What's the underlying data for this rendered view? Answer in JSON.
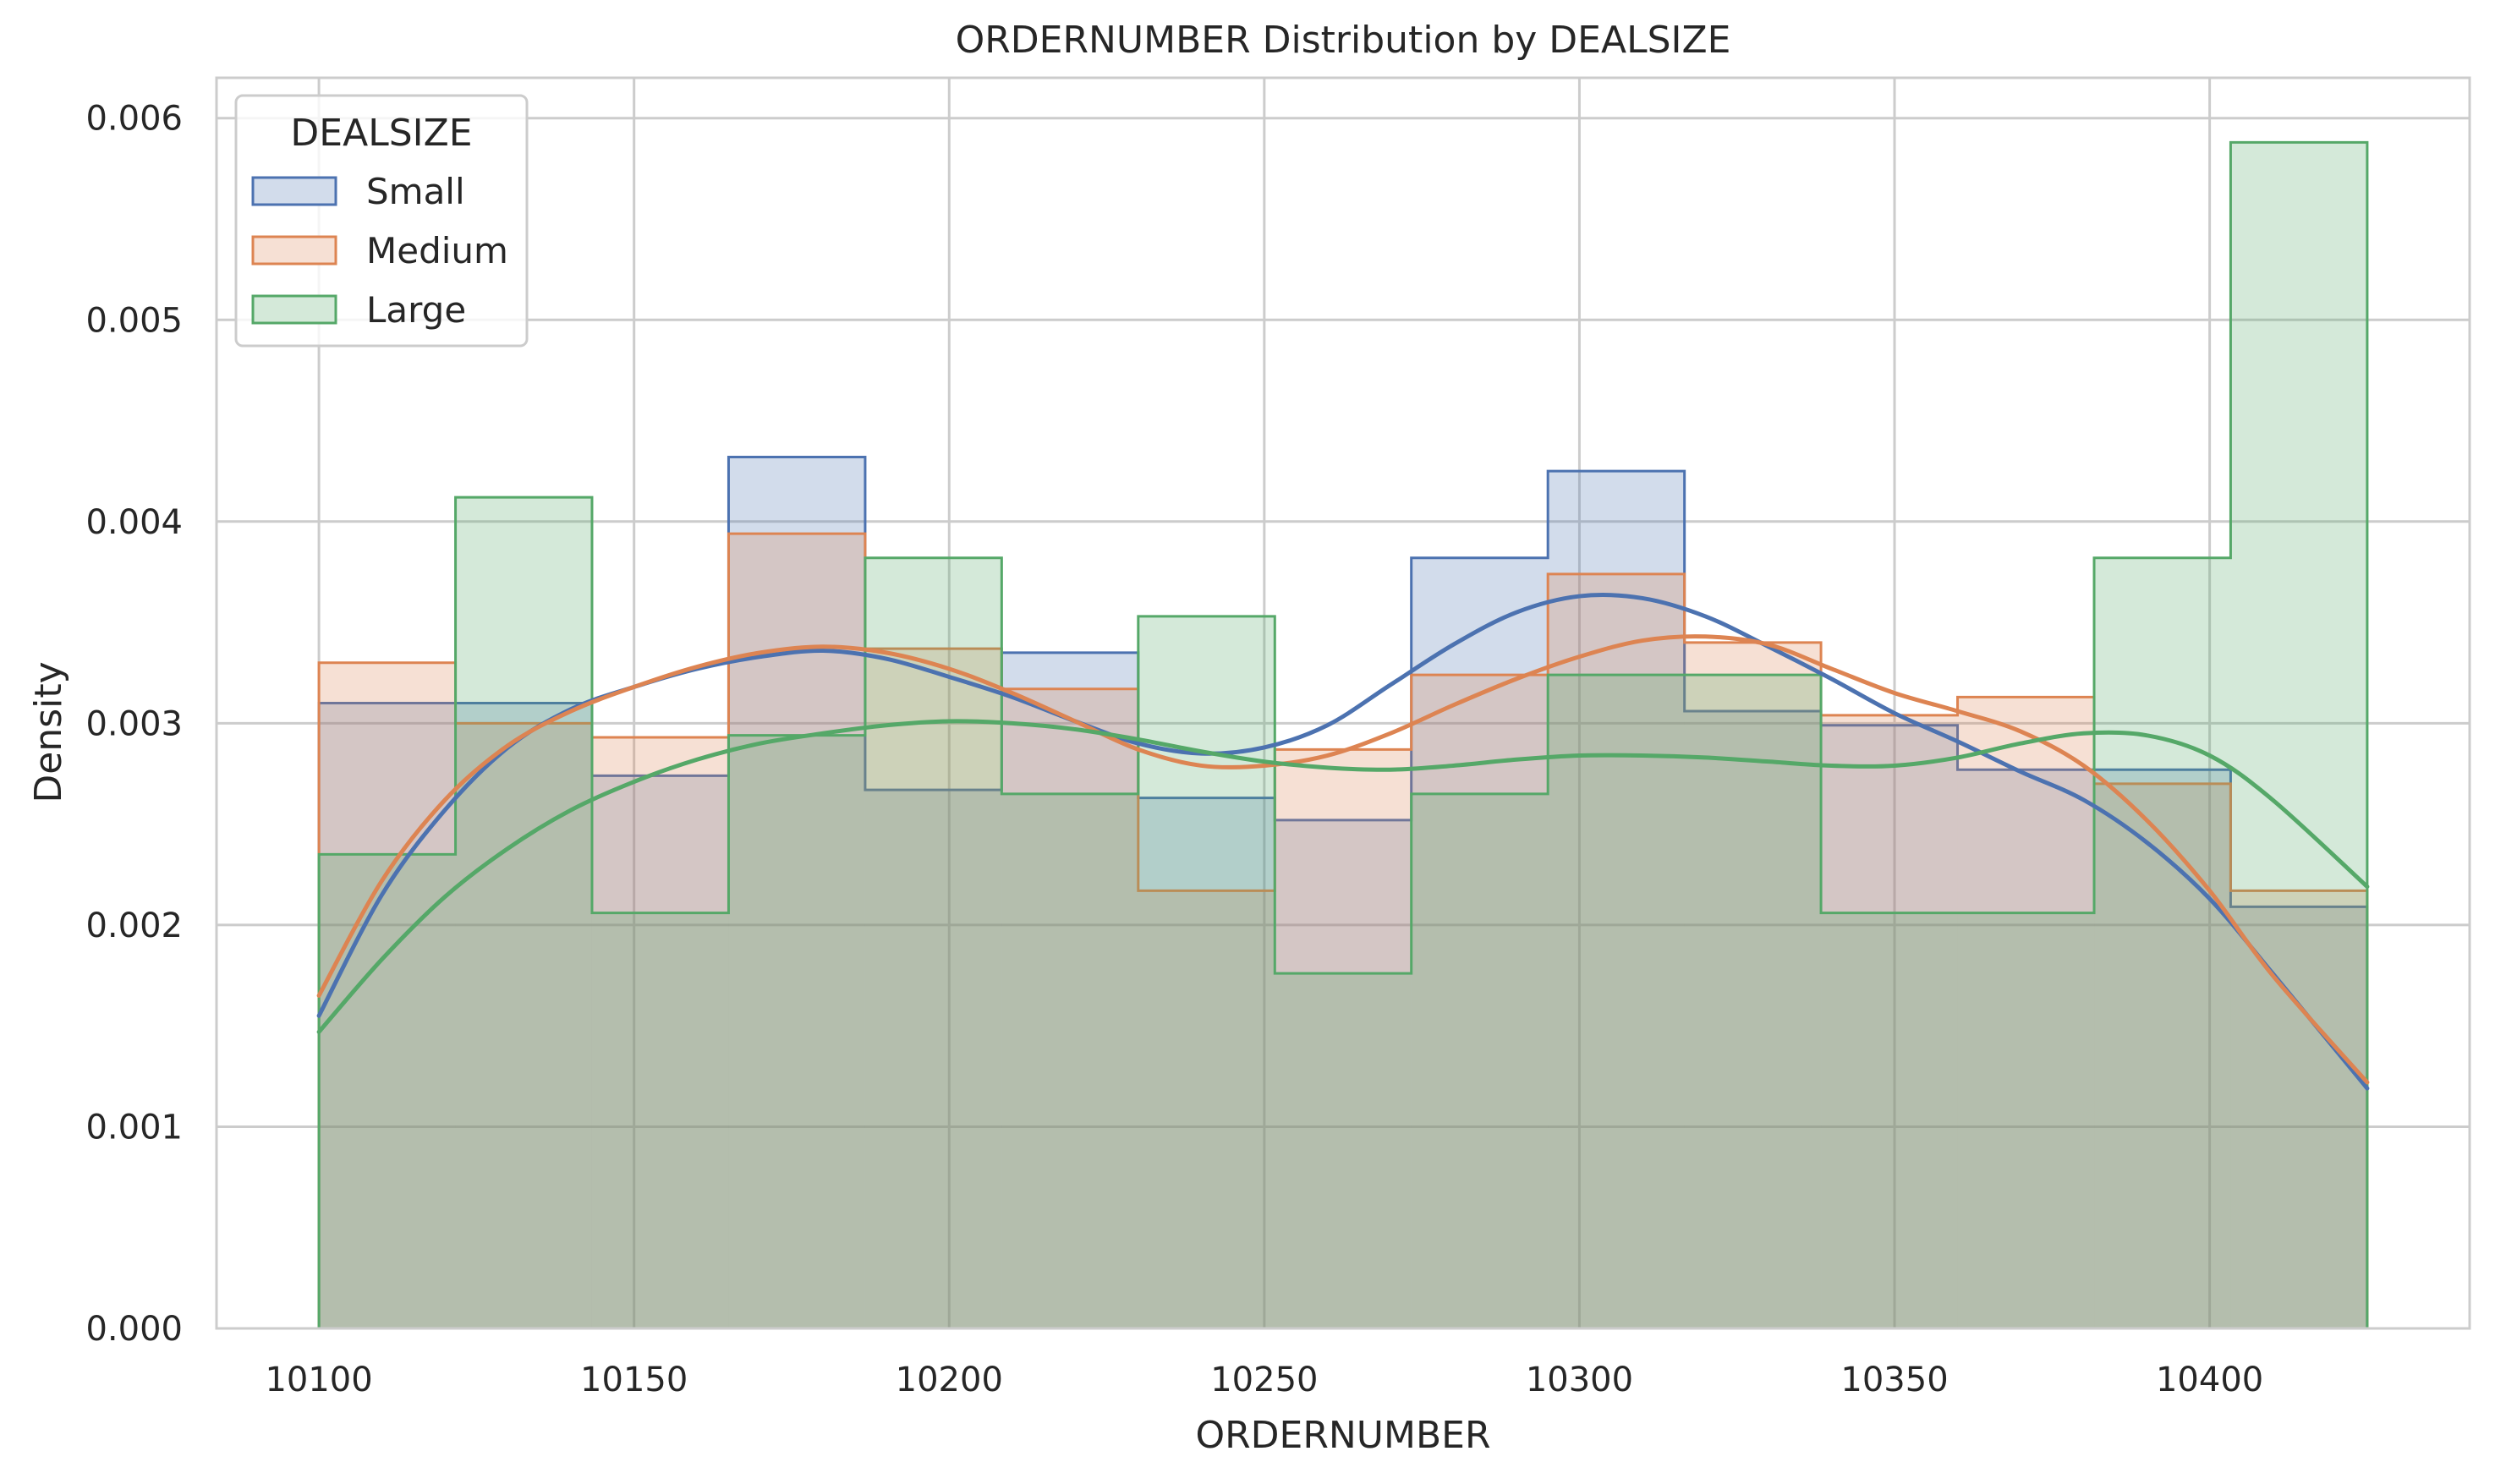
{
  "chart_data": {
    "type": "histogram",
    "title": "ORDERNUMBER Distribution by DEALSIZE",
    "xlabel": "ORDERNUMBER",
    "ylabel": "Density",
    "xlim": [
      10083.75,
      10441.25
    ],
    "ylim": [
      0,
      0.0062
    ],
    "xticks": [
      10100,
      10150,
      10200,
      10250,
      10300,
      10350,
      10400
    ],
    "xtick_labels": [
      "10100",
      "10150",
      "10200",
      "10250",
      "10300",
      "10350",
      "10400"
    ],
    "yticks": [
      0,
      0.001,
      0.002,
      0.003,
      0.004,
      0.005,
      0.006
    ],
    "ytick_labels": [
      "0.000",
      "0.001",
      "0.002",
      "0.003",
      "0.004",
      "0.005",
      "0.006"
    ],
    "grid": true,
    "legend": {
      "title": "DEALSIZE",
      "placement": "top-left"
    },
    "bin_edges": [
      10100,
      10121.67,
      10143.33,
      10165,
      10186.67,
      10208.33,
      10230,
      10251.67,
      10273.33,
      10295,
      10316.67,
      10338.33,
      10360,
      10381.67,
      10403.33,
      10425
    ],
    "series": [
      {
        "name": "Small",
        "color": "#4c72b0",
        "values": [
          0.0031,
          0.0031,
          0.00274,
          0.00432,
          0.00267,
          0.00335,
          0.00263,
          0.00252,
          0.00382,
          0.00425,
          0.00306,
          0.00299,
          0.00277,
          0.00277,
          0.00209
        ],
        "kde": {
          "x": [
            10100,
            10110,
            10120,
            10130,
            10140,
            10150,
            10160,
            10170,
            10180,
            10190,
            10200,
            10210,
            10220,
            10230,
            10240,
            10250,
            10260,
            10270,
            10280,
            10290,
            10300,
            10310,
            10320,
            10330,
            10340,
            10350,
            10360,
            10370,
            10380,
            10390,
            10400,
            10410,
            10425
          ],
          "y": [
            0.00155,
            0.00215,
            0.00257,
            0.00288,
            0.00307,
            0.00318,
            0.00327,
            0.00333,
            0.00336,
            0.00332,
            0.00323,
            0.00313,
            0.00301,
            0.0029,
            0.00285,
            0.00288,
            0.00299,
            0.00319,
            0.00339,
            0.00355,
            0.00363,
            0.00362,
            0.00353,
            0.00338,
            0.00322,
            0.00305,
            0.00291,
            0.00276,
            0.00262,
            0.00241,
            0.00213,
            0.00176,
            0.00119
          ]
        }
      },
      {
        "name": "Medium",
        "color": "#dd8452",
        "values": [
          0.0033,
          0.003,
          0.00293,
          0.00394,
          0.00337,
          0.00317,
          0.00217,
          0.00287,
          0.00324,
          0.00374,
          0.0034,
          0.00304,
          0.00313,
          0.0027,
          0.00217
        ],
        "kde": {
          "x": [
            10100,
            10110,
            10120,
            10130,
            10140,
            10150,
            10160,
            10170,
            10180,
            10190,
            10200,
            10210,
            10220,
            10230,
            10240,
            10250,
            10260,
            10270,
            10280,
            10290,
            10300,
            10310,
            10320,
            10330,
            10340,
            10350,
            10360,
            10370,
            10380,
            10390,
            10400,
            10410,
            10425
          ],
          "y": [
            0.00165,
            0.00222,
            0.00262,
            0.00289,
            0.00306,
            0.00318,
            0.00328,
            0.00335,
            0.00338,
            0.00335,
            0.00327,
            0.00315,
            0.00301,
            0.00287,
            0.00279,
            0.00279,
            0.00284,
            0.00295,
            0.00309,
            0.00322,
            0.00333,
            0.00341,
            0.00343,
            0.00339,
            0.00327,
            0.00315,
            0.00306,
            0.00296,
            0.00279,
            0.00252,
            0.00217,
            0.00175,
            0.00122
          ]
        }
      },
      {
        "name": "Large",
        "color": "#55a868",
        "values": [
          0.00235,
          0.00412,
          0.00206,
          0.00294,
          0.00382,
          0.00265,
          0.00353,
          0.00176,
          0.00265,
          0.00324,
          0.00324,
          0.00206,
          0.00206,
          0.00382,
          0.00588
        ],
        "kde": {
          "x": [
            10100,
            10110,
            10120,
            10130,
            10140,
            10150,
            10160,
            10170,
            10180,
            10190,
            10200,
            10210,
            10220,
            10230,
            10240,
            10250,
            10260,
            10270,
            10280,
            10290,
            10300,
            10310,
            10320,
            10330,
            10340,
            10350,
            10360,
            10370,
            10380,
            10390,
            10400,
            10410,
            10425
          ],
          "y": [
            0.00147,
            0.00183,
            0.00214,
            0.00238,
            0.00257,
            0.00271,
            0.00282,
            0.0029,
            0.00295,
            0.00299,
            0.00301,
            0.003,
            0.00297,
            0.00292,
            0.00286,
            0.00281,
            0.00278,
            0.00277,
            0.00279,
            0.00282,
            0.00284,
            0.00284,
            0.00283,
            0.00281,
            0.00279,
            0.00279,
            0.00283,
            0.0029,
            0.00295,
            0.00294,
            0.00284,
            0.00262,
            0.00219
          ]
        }
      }
    ]
  }
}
